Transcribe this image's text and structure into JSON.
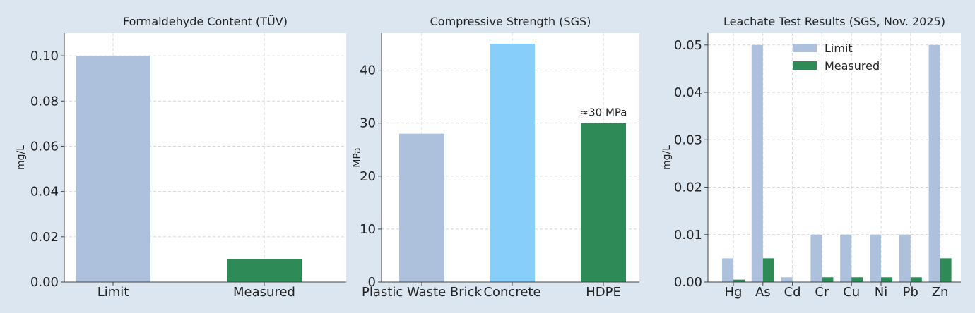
{
  "colors": {
    "figure_bg": "#dbe6f1",
    "plot_bg": "#ffffff",
    "limit": "#adc0dc",
    "measured": "#2e8b57",
    "concrete": "#87cefa",
    "grid": "#d7d7d7",
    "axis": "#444444"
  },
  "chart_data": [
    {
      "type": "bar",
      "title": "Formaldehyde Content (TÜV)",
      "ylabel": "mg/L",
      "xlabel": "",
      "categories": [
        "Limit",
        "Measured"
      ],
      "values": [
        0.1,
        0.01
      ],
      "bar_colors": [
        "#adc0dc",
        "#2e8b57"
      ],
      "ylim": [
        0,
        0.11
      ],
      "yticks": [
        0.0,
        0.02,
        0.04,
        0.06,
        0.08,
        0.1
      ],
      "ytick_labels": [
        "0.00",
        "0.02",
        "0.04",
        "0.06",
        "0.08",
        "0.10"
      ],
      "grid": true
    },
    {
      "type": "bar",
      "title": "Compressive Strength (SGS)",
      "ylabel": "MPa",
      "xlabel": "",
      "categories": [
        "Plastic Waste Brick",
        "Concrete",
        "HDPE"
      ],
      "values": [
        28,
        45,
        30
      ],
      "bar_colors": [
        "#adc0dc",
        "#87cefa",
        "#2e8b57"
      ],
      "ylim": [
        0,
        47
      ],
      "yticks": [
        0,
        10,
        20,
        30,
        40
      ],
      "ytick_labels": [
        "0",
        "10",
        "20",
        "30",
        "40"
      ],
      "annotations": [
        {
          "category": "HDPE",
          "text": "≈30 MPa"
        }
      ],
      "grid": true
    },
    {
      "type": "bar",
      "title": "Leachate Test Results (SGS, Nov. 2025)",
      "ylabel": "mg/L",
      "xlabel": "",
      "categories": [
        "Hg",
        "As",
        "Cd",
        "Cr",
        "Cu",
        "Ni",
        "Pb",
        "Zn"
      ],
      "series": [
        {
          "name": "Limit",
          "color": "#adc0dc",
          "values": [
            0.005,
            0.05,
            0.001,
            0.01,
            0.01,
            0.01,
            0.01,
            0.05
          ]
        },
        {
          "name": "Measured",
          "color": "#2e8b57",
          "values": [
            0.0005,
            0.005,
            0.0,
            0.001,
            0.001,
            0.001,
            0.001,
            0.005
          ]
        }
      ],
      "ylim": [
        0,
        0.0525
      ],
      "yticks": [
        0.0,
        0.01,
        0.02,
        0.03,
        0.04,
        0.05
      ],
      "ytick_labels": [
        "0.00",
        "0.01",
        "0.02",
        "0.03",
        "0.04",
        "0.05"
      ],
      "legend": "top-center",
      "grid": true
    }
  ]
}
